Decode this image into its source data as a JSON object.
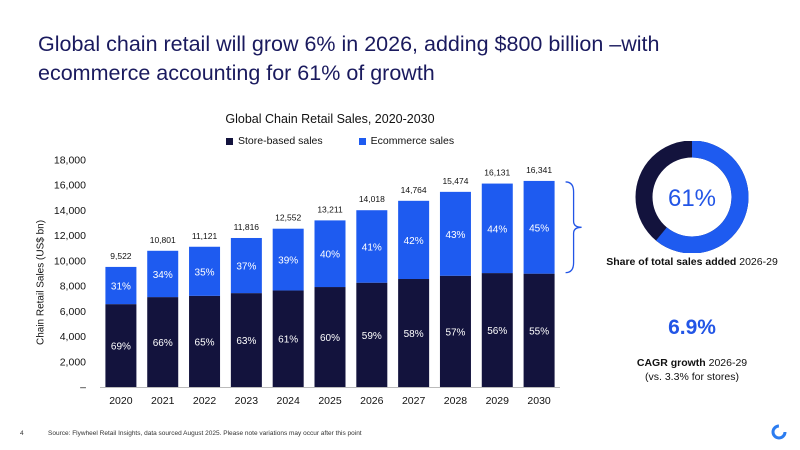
{
  "headline": "Global chain retail will grow 6% in 2026, adding $800 billion –with ecommerce accounting for 61% of growth",
  "colors": {
    "store": "#13133d",
    "ecom": "#1e5bf0",
    "accent": "#2255e6"
  },
  "chart_data": {
    "type": "bar",
    "stacked": true,
    "title": "Global Chain Retail Sales, 2020-2030",
    "ylabel": "Chain Retail Sales (US$ bn)",
    "xlabel": "",
    "ylim": [
      0,
      18000
    ],
    "yticks": [
      "–",
      "2,000",
      "4,000",
      "6,000",
      "8,000",
      "10,000",
      "12,000",
      "14,000",
      "16,000",
      "18,000"
    ],
    "grid": false,
    "legend_position": "top",
    "categories": [
      "2020",
      "2021",
      "2022",
      "2023",
      "2024",
      "2025",
      "2026",
      "2027",
      "2028",
      "2029",
      "2030"
    ],
    "totals": [
      9522,
      10801,
      11121,
      11816,
      12552,
      13211,
      14018,
      14764,
      15474,
      16131,
      16341
    ],
    "total_labels": [
      "9,522",
      "10,801",
      "11,121",
      "11,816",
      "12,552",
      "13,211",
      "14,018",
      "14,764",
      "15,474",
      "16,131",
      "16,341"
    ],
    "series": [
      {
        "name": "Store-based sales",
        "percent_labels": [
          "69%",
          "66%",
          "65%",
          "63%",
          "61%",
          "60%",
          "59%",
          "58%",
          "57%",
          "56%",
          "55%"
        ],
        "share": [
          0.69,
          0.66,
          0.65,
          0.63,
          0.61,
          0.6,
          0.59,
          0.58,
          0.57,
          0.56,
          0.55
        ]
      },
      {
        "name": "Ecommerce sales",
        "percent_labels": [
          "31%",
          "34%",
          "35%",
          "37%",
          "39%",
          "40%",
          "41%",
          "42%",
          "43%",
          "44%",
          "45%"
        ],
        "share": [
          0.31,
          0.34,
          0.35,
          0.37,
          0.39,
          0.4,
          0.41,
          0.42,
          0.43,
          0.44,
          0.45
        ]
      }
    ]
  },
  "donut": {
    "value_label": "61%",
    "share": 0.61,
    "label_bold": "Share of total sales added",
    "label_rest": " 2026-29"
  },
  "cagr": {
    "value": "6.9%",
    "label_bold": "CAGR growth",
    "label_rest": " 2026-29",
    "label_line2": "(vs. 3.3% for stores)"
  },
  "footer": {
    "page_number": "4",
    "source": "Source: Flywheel Retail Insights, data sourced August 2025. Please note variations may occur after this point"
  }
}
